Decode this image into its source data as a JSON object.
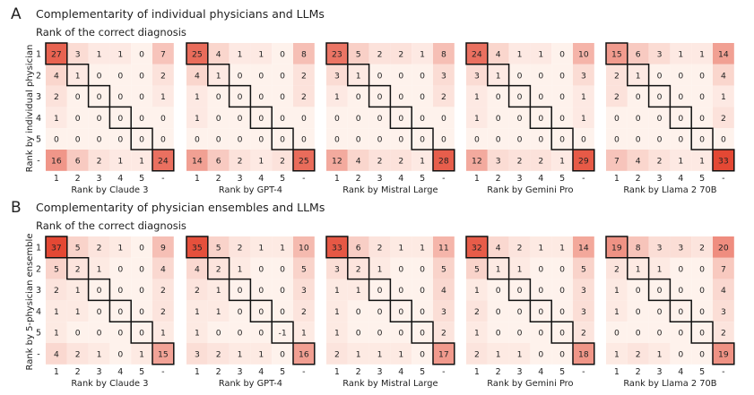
{
  "chart_data": [
    {
      "type": "heatmap",
      "panel_letter": "A",
      "title": "Complementarity of individual physicians and LLMs",
      "subtitle": "Rank of the correct diagnosis",
      "ylabel": "Rank by individual physician",
      "rows": [
        "1",
        "2",
        "3",
        "4",
        "5",
        "-"
      ],
      "cols": [
        "1",
        "2",
        "3",
        "4",
        "5",
        "-"
      ],
      "matrices": [
        {
          "xlabel": "Rank by Claude 3",
          "values": [
            [
              27,
              3,
              1,
              1,
              0,
              7
            ],
            [
              4,
              1,
              0,
              0,
              0,
              2
            ],
            [
              2,
              0,
              0,
              0,
              0,
              1
            ],
            [
              1,
              0,
              0,
              0,
              0,
              0
            ],
            [
              0,
              0,
              0,
              0,
              0,
              0
            ],
            [
              16,
              6,
              2,
              1,
              1,
              24
            ]
          ]
        },
        {
          "xlabel": "Rank by GPT-4",
          "values": [
            [
              25,
              4,
              1,
              1,
              0,
              8
            ],
            [
              4,
              1,
              0,
              0,
              0,
              2
            ],
            [
              1,
              0,
              0,
              0,
              0,
              2
            ],
            [
              1,
              0,
              0,
              0,
              0,
              0
            ],
            [
              0,
              0,
              0,
              0,
              0,
              0
            ],
            [
              14,
              6,
              2,
              1,
              2,
              25
            ]
          ]
        },
        {
          "xlabel": "Rank by Mistral Large",
          "values": [
            [
              23,
              5,
              2,
              2,
              1,
              8
            ],
            [
              3,
              1,
              0,
              0,
              0,
              3
            ],
            [
              1,
              0,
              0,
              0,
              0,
              2
            ],
            [
              0,
              0,
              0,
              0,
              0,
              0
            ],
            [
              0,
              0,
              0,
              0,
              0,
              0
            ],
            [
              12,
              4,
              2,
              2,
              1,
              28
            ]
          ]
        },
        {
          "xlabel": "Rank by Gemini Pro",
          "values": [
            [
              24,
              4,
              1,
              1,
              0,
              10
            ],
            [
              3,
              1,
              0,
              0,
              0,
              3
            ],
            [
              1,
              0,
              0,
              0,
              0,
              1
            ],
            [
              1,
              0,
              0,
              0,
              0,
              1
            ],
            [
              0,
              0,
              0,
              0,
              0,
              0
            ],
            [
              12,
              3,
              2,
              2,
              1,
              29
            ]
          ]
        },
        {
          "xlabel": "Rank by Llama 2 70B",
          "values": [
            [
              15,
              6,
              3,
              1,
              1,
              14
            ],
            [
              2,
              1,
              0,
              0,
              0,
              4
            ],
            [
              2,
              0,
              0,
              0,
              0,
              1
            ],
            [
              0,
              0,
              0,
              0,
              0,
              2
            ],
            [
              0,
              0,
              0,
              0,
              0,
              0
            ],
            [
              7,
              4,
              2,
              1,
              1,
              33
            ]
          ]
        }
      ]
    },
    {
      "type": "heatmap",
      "panel_letter": "B",
      "title": "Complementarity of physician ensembles and LLMs",
      "subtitle": "Rank of the correct diagnosis",
      "ylabel": "Rank by 5-physician ensemble",
      "rows": [
        "1",
        "2",
        "3",
        "4",
        "5",
        "-"
      ],
      "cols": [
        "1",
        "2",
        "3",
        "4",
        "5",
        "-"
      ],
      "matrices": [
        {
          "xlabel": "Rank by Claude 3",
          "values": [
            [
              37,
              5,
              2,
              1,
              0,
              9
            ],
            [
              5,
              2,
              1,
              0,
              0,
              4
            ],
            [
              2,
              1,
              0,
              0,
              0,
              2
            ],
            [
              1,
              1,
              0,
              0,
              0,
              2
            ],
            [
              1,
              0,
              0,
              0,
              0,
              1
            ],
            [
              4,
              2,
              1,
              0,
              1,
              15
            ]
          ]
        },
        {
          "xlabel": "Rank by GPT-4",
          "values": [
            [
              35,
              5,
              2,
              1,
              1,
              10
            ],
            [
              4,
              2,
              1,
              0,
              0,
              5
            ],
            [
              2,
              1,
              0,
              0,
              0,
              3
            ],
            [
              1,
              1,
              0,
              0,
              0,
              2
            ],
            [
              1,
              0,
              0,
              0,
              -1,
              1
            ],
            [
              3,
              2,
              1,
              1,
              0,
              16
            ]
          ]
        },
        {
          "xlabel": "Rank by Mistral Large",
          "values": [
            [
              33,
              6,
              2,
              1,
              1,
              11
            ],
            [
              3,
              2,
              1,
              0,
              0,
              5
            ],
            [
              1,
              1,
              0,
              0,
              0,
              4
            ],
            [
              1,
              0,
              0,
              0,
              0,
              3
            ],
            [
              1,
              0,
              0,
              0,
              0,
              2
            ],
            [
              2,
              1,
              1,
              1,
              0,
              17
            ]
          ]
        },
        {
          "xlabel": "Rank by Gemini Pro",
          "values": [
            [
              32,
              4,
              2,
              1,
              1,
              14
            ],
            [
              5,
              1,
              1,
              0,
              0,
              5
            ],
            [
              1,
              0,
              0,
              0,
              0,
              3
            ],
            [
              2,
              0,
              0,
              0,
              0,
              3
            ],
            [
              1,
              0,
              0,
              0,
              0,
              2
            ],
            [
              2,
              1,
              1,
              0,
              0,
              18
            ]
          ]
        },
        {
          "xlabel": "Rank by Llama 2 70B",
          "values": [
            [
              19,
              8,
              3,
              3,
              2,
              20
            ],
            [
              2,
              1,
              1,
              0,
              0,
              7
            ],
            [
              1,
              0,
              0,
              0,
              0,
              4
            ],
            [
              1,
              0,
              0,
              0,
              0,
              3
            ],
            [
              0,
              0,
              0,
              0,
              0,
              2
            ],
            [
              1,
              2,
              1,
              0,
              0,
              19
            ]
          ]
        }
      ]
    }
  ]
}
